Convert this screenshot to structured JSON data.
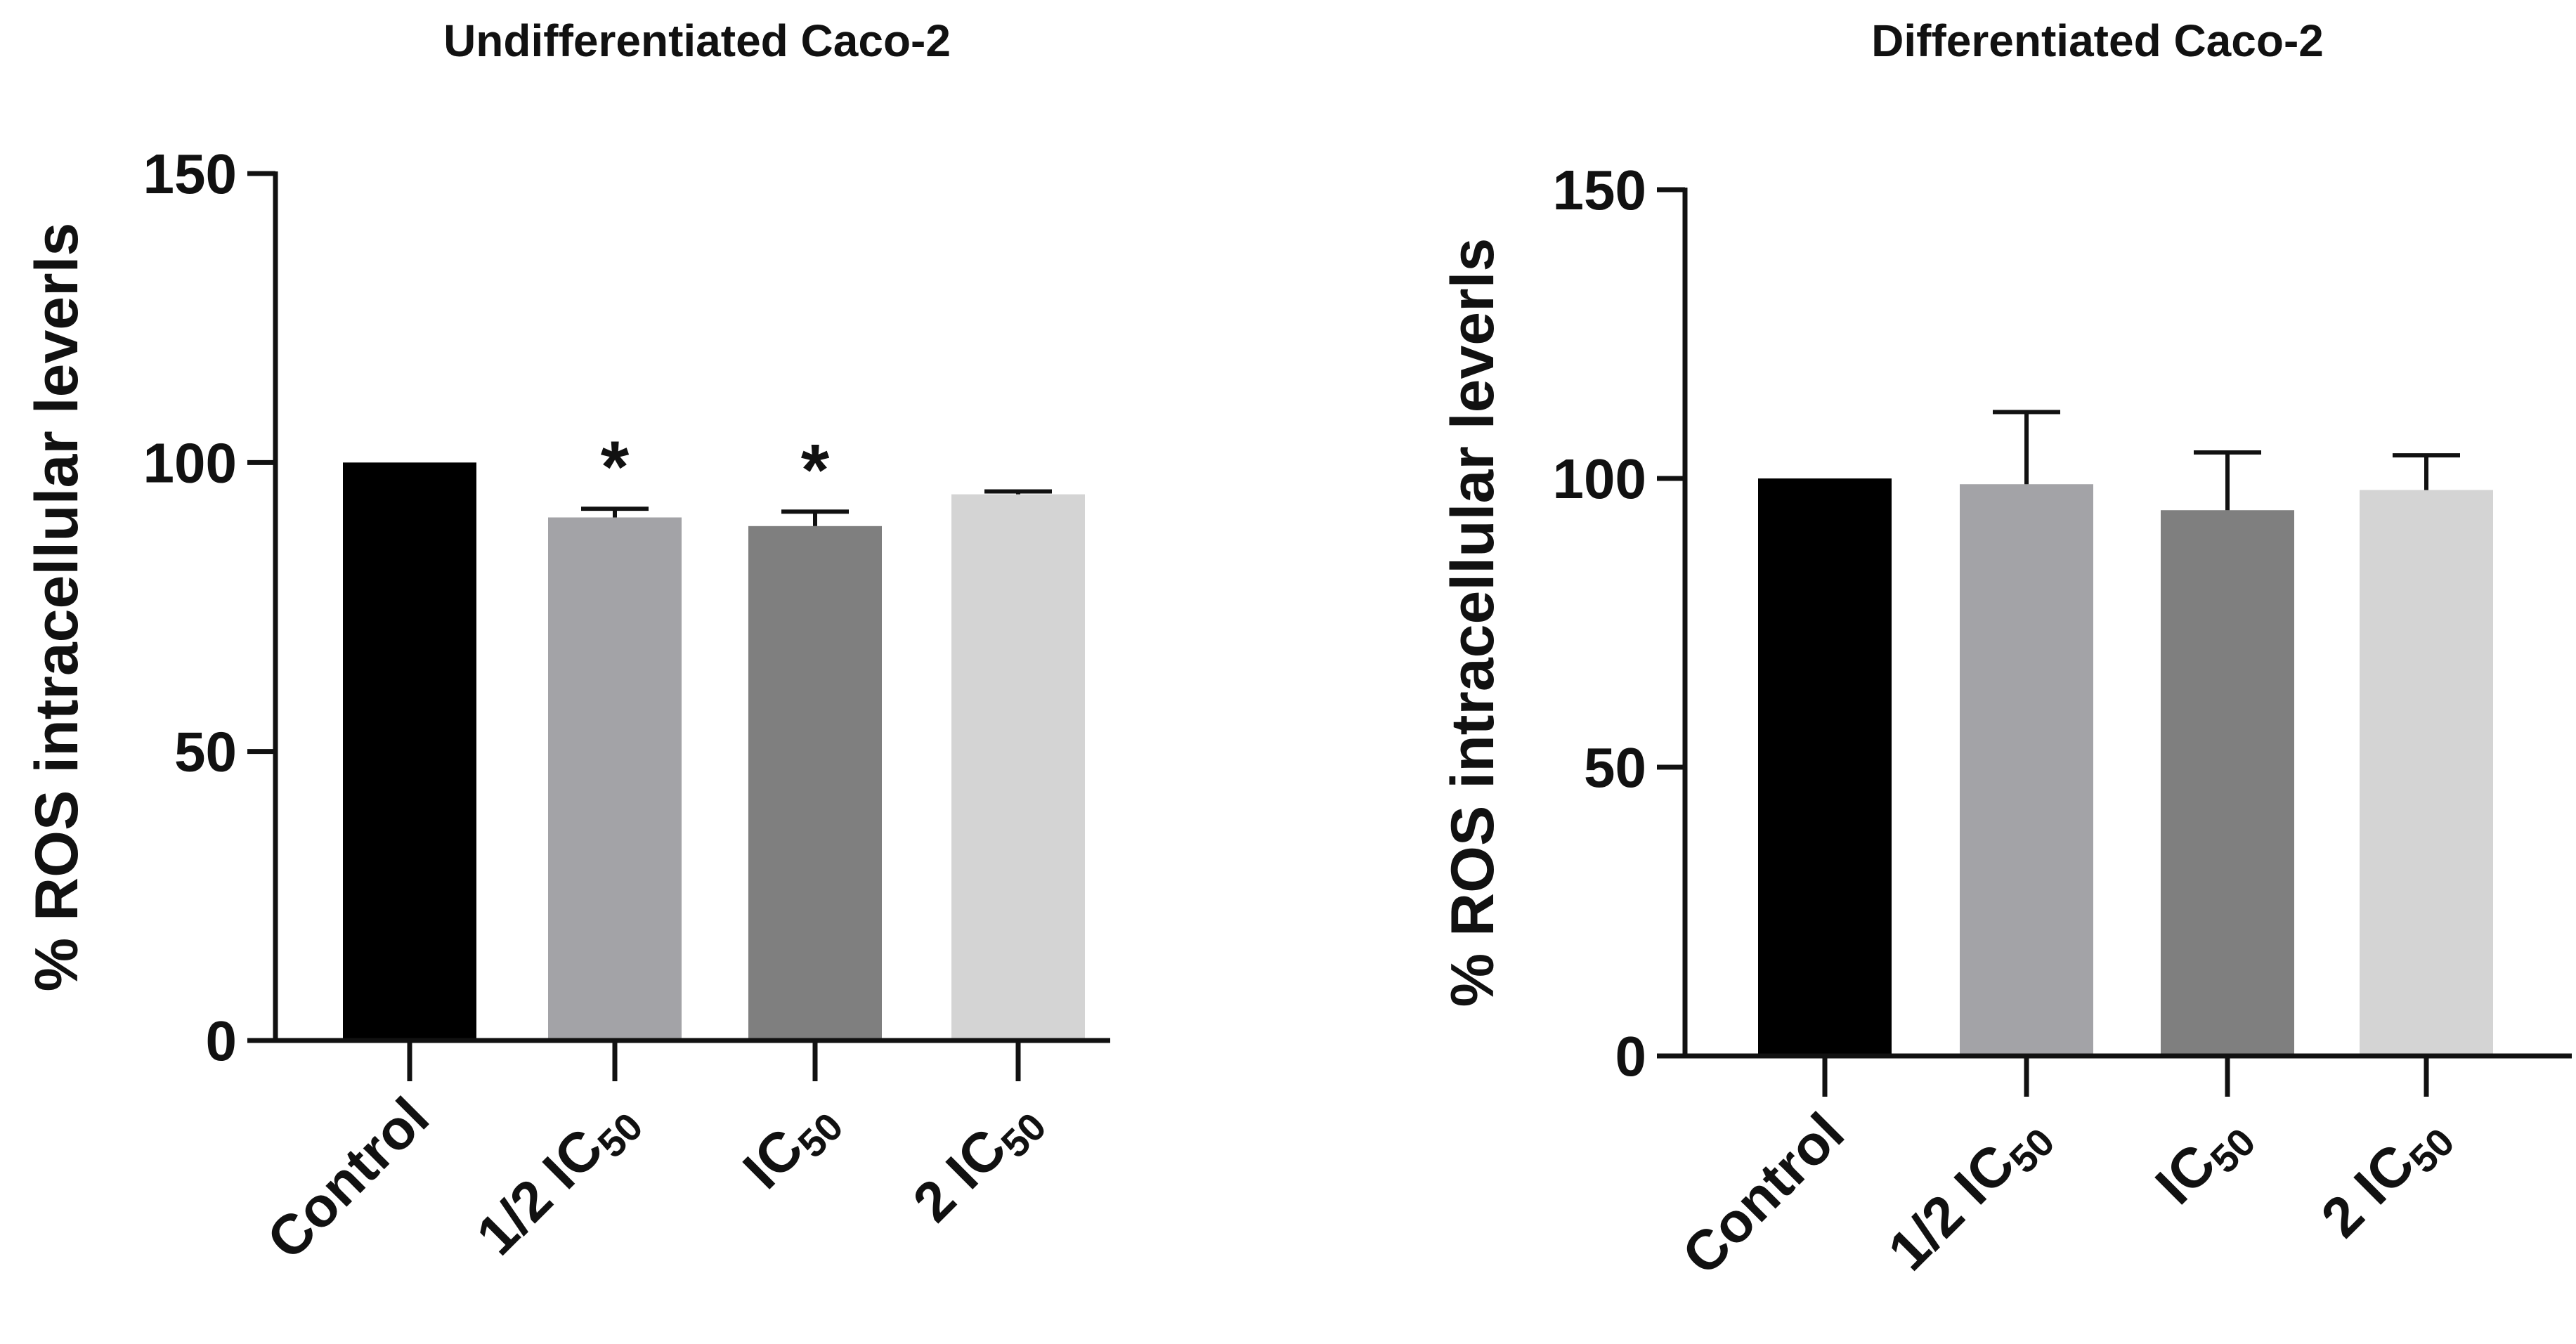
{
  "chart_data": [
    {
      "type": "bar",
      "title": "Undifferentiated Caco-2",
      "xlabel": "",
      "ylabel": "% ROS intracellular leverls",
      "ylim": [
        0,
        150
      ],
      "yticks": [
        0,
        50,
        100,
        150
      ],
      "grid": false,
      "categories": [
        {
          "main": "Control",
          "sub": ""
        },
        {
          "main": "1/2 IC",
          "sub": "50"
        },
        {
          "main": "IC",
          "sub": "50"
        },
        {
          "main": "2 IC",
          "sub": "50"
        }
      ],
      "values": [
        100,
        90.5,
        89,
        94.5
      ],
      "errors": [
        0,
        1.5,
        2.5,
        0.5
      ],
      "significance": [
        "",
        "*",
        "*",
        ""
      ],
      "colors": [
        "#000000",
        "#a3a3a7",
        "#7f7f7f",
        "#d4d4d4"
      ]
    },
    {
      "type": "bar",
      "title": "Differentiated Caco-2",
      "xlabel": "",
      "ylabel": "% ROS intracellular leverls",
      "ylim": [
        0,
        150
      ],
      "yticks": [
        0,
        50,
        100,
        150
      ],
      "grid": false,
      "categories": [
        {
          "main": "Control",
          "sub": ""
        },
        {
          "main": "1/2 IC",
          "sub": "50"
        },
        {
          "main": "IC",
          "sub": "50"
        },
        {
          "main": "2 IC",
          "sub": "50"
        }
      ],
      "values": [
        100,
        99,
        94.5,
        98
      ],
      "errors": [
        0,
        12.5,
        10,
        6
      ],
      "significance": [
        "",
        "",
        "",
        ""
      ],
      "colors": [
        "#000000",
        "#a3a3a7",
        "#7f7f7f",
        "#d4d4d4"
      ]
    }
  ]
}
